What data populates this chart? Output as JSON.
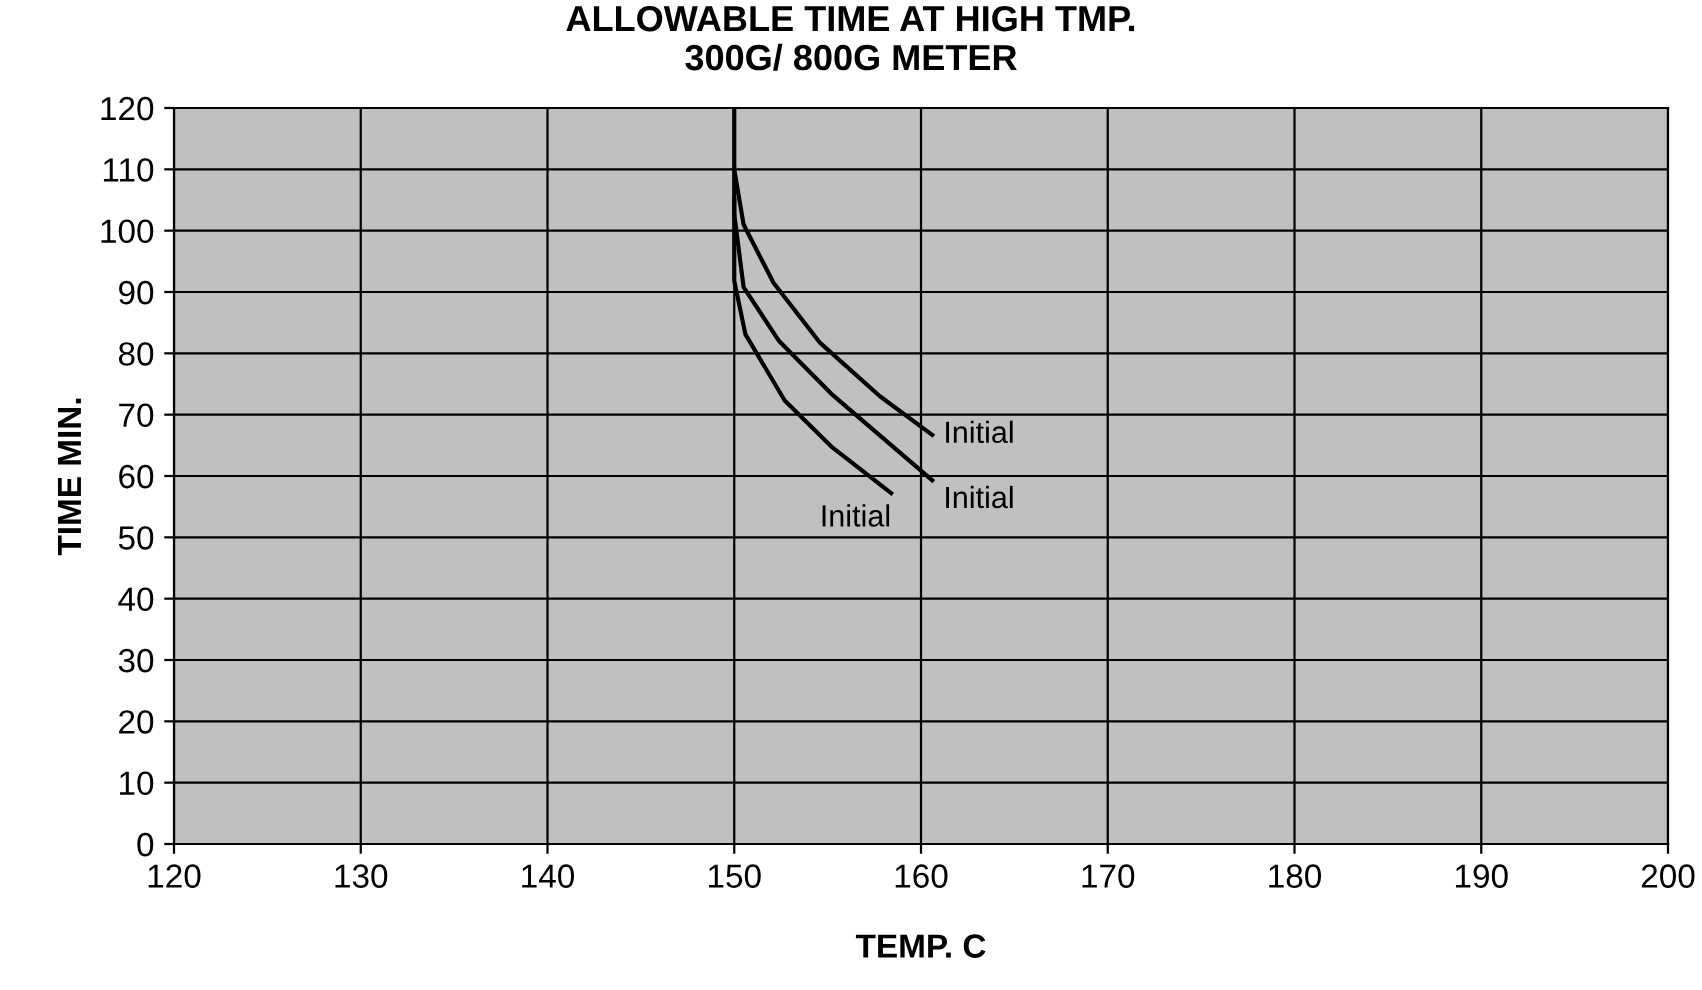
{
  "chart_data": {
    "type": "line",
    "title": "ALLOWABLE TIME AT HIGH TMP.\n300G/ 800G METER",
    "xlabel": "TEMP. C",
    "ylabel": "TIME MIN.",
    "series": [
      {
        "name": "Initial",
        "x": [
          150,
          150,
          150.5,
          152.1,
          154.6,
          157.8,
          160.6
        ],
        "values": [
          120,
          110,
          101,
          91.5,
          81.7,
          73,
          66.7
        ],
        "color": "#000000"
      },
      {
        "name": "Initial",
        "x": [
          150,
          150,
          150.5,
          152.4,
          155.2,
          160.6
        ],
        "values": [
          110,
          102.7,
          90.8,
          82,
          73.4,
          59.3
        ],
        "color": "#000000"
      },
      {
        "name": "Initial",
        "x": [
          150,
          150,
          150.6,
          152.7,
          155.2,
          158.4
        ],
        "values": [
          105,
          91.8,
          83.1,
          72.3,
          64.8,
          57.2
        ],
        "color": "#000000"
      }
    ],
    "xlim": [
      120,
      200
    ],
    "xticks": [
      120,
      130,
      140,
      150,
      160,
      170,
      180,
      190,
      200
    ],
    "ylim": [
      0,
      120
    ],
    "yticks": [
      0,
      10,
      20,
      30,
      40,
      50,
      60,
      70,
      80,
      90,
      100,
      110,
      120
    ],
    "grid": true,
    "legend": false,
    "marker": "none",
    "line_style": "solid"
  }
}
